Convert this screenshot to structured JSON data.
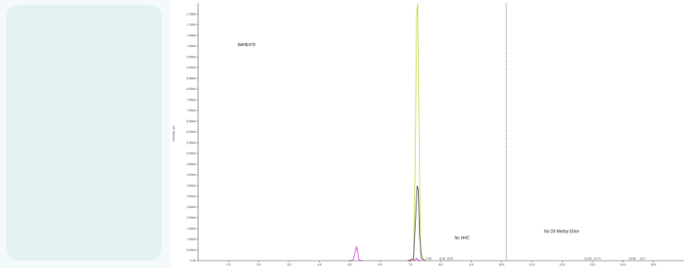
{
  "chart_data": {
    "type": "line",
    "title": "",
    "xlabel": "",
    "ylabel": "Intensity, cps",
    "xlim": [
      0.0,
      16.0
    ],
    "ylim": [
      0,
      1200000.0
    ],
    "grid": false,
    "x_ticks": [
      "1.0",
      "2.0",
      "3.0",
      "4.0",
      "5.0",
      "6.0",
      "7.0",
      "8.0",
      "9.0",
      "10.0",
      "11.0",
      "12.0",
      "13.0",
      "14.0",
      "15.0"
    ],
    "y_ticks": [
      "0.00",
      "5.00e4",
      "1.00e5",
      "1.50e5",
      "2.00e5",
      "2.50e5",
      "3.00e5",
      "3.50e5",
      "4.00e5",
      "4.50e5",
      "5.00e5",
      "5.50e5",
      "6.00e5",
      "6.50e5",
      "7.00e5",
      "7.50e5",
      "8.00e5",
      "8.50e5",
      "9.00e5",
      "9.50e5",
      "1.00e6",
      "1.05e6",
      "1.10e6",
      "1.15e6"
    ],
    "series": [
      {
        "color": "#c8d43a",
        "x": [
          6.9,
          7.1,
          7.15,
          7.2,
          7.24,
          7.28,
          7.33,
          7.45
        ],
        "y": [
          0,
          10000,
          420000,
          1140000,
          1200000,
          650000,
          40000,
          0
        ]
      },
      {
        "color": "#444444",
        "x": [
          6.9,
          7.1,
          7.16,
          7.22,
          7.26,
          7.3,
          7.36,
          7.5
        ],
        "y": [
          0,
          8000,
          180000,
          350000,
          330000,
          120000,
          10000,
          0
        ]
      },
      {
        "color": "#d23ad2",
        "x": [
          5.0,
          5.12,
          5.18,
          5.22,
          5.26,
          5.3,
          5.42
        ],
        "y": [
          0,
          5000,
          45000,
          65000,
          42000,
          4000,
          0
        ]
      },
      {
        "color": "#d23ad2",
        "x": [
          7.05,
          7.15,
          7.2,
          7.24,
          7.35
        ],
        "y": [
          0,
          3000,
          12000,
          4000,
          0
        ]
      }
    ],
    "annotations": [
      {
        "text": "AAHE479"
      },
      {
        "text": "No HHC"
      },
      {
        "text": "No D9 Methyl Ether"
      }
    ],
    "peak_labels": [
      "7.93",
      "8.16",
      "8.24",
      "12.62",
      "12.71",
      "13.46",
      "13.7"
    ],
    "vlines": [
      10.15
    ]
  }
}
